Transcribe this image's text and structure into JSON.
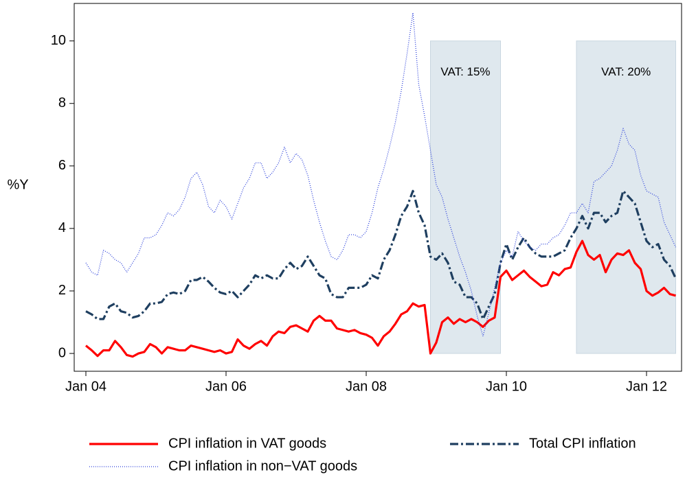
{
  "chart_data": {
    "type": "line",
    "y_label": "%Y",
    "x": [
      "2004-01",
      "2004-02",
      "2004-03",
      "2004-04",
      "2004-05",
      "2004-06",
      "2004-07",
      "2004-08",
      "2004-09",
      "2004-10",
      "2004-11",
      "2004-12",
      "2005-01",
      "2005-02",
      "2005-03",
      "2005-04",
      "2005-05",
      "2005-06",
      "2005-07",
      "2005-08",
      "2005-09",
      "2005-10",
      "2005-11",
      "2005-12",
      "2006-01",
      "2006-02",
      "2006-03",
      "2006-04",
      "2006-05",
      "2006-06",
      "2006-07",
      "2006-08",
      "2006-09",
      "2006-10",
      "2006-11",
      "2006-12",
      "2007-01",
      "2007-02",
      "2007-03",
      "2007-04",
      "2007-05",
      "2007-06",
      "2007-07",
      "2007-08",
      "2007-09",
      "2007-10",
      "2007-11",
      "2007-12",
      "2008-01",
      "2008-02",
      "2008-03",
      "2008-04",
      "2008-05",
      "2008-06",
      "2008-07",
      "2008-08",
      "2008-09",
      "2008-10",
      "2008-11",
      "2008-12",
      "2009-01",
      "2009-02",
      "2009-03",
      "2009-04",
      "2009-05",
      "2009-06",
      "2009-07",
      "2009-08",
      "2009-09",
      "2009-10",
      "2009-11",
      "2009-12",
      "2010-01",
      "2010-02",
      "2010-03",
      "2010-04",
      "2010-05",
      "2010-06",
      "2010-07",
      "2010-08",
      "2010-09",
      "2010-10",
      "2010-11",
      "2010-12",
      "2011-01",
      "2011-02",
      "2011-03",
      "2011-04",
      "2011-05",
      "2011-06",
      "2011-07",
      "2011-08",
      "2011-09",
      "2011-10",
      "2011-11",
      "2011-12",
      "2012-01",
      "2012-02",
      "2012-03",
      "2012-04",
      "2012-05",
      "2012-06"
    ],
    "series": [
      {
        "name": "CPI inflation in VAT goods",
        "color": "#ff0000",
        "style": "solid",
        "values": [
          0.25,
          0.1,
          -0.08,
          0.1,
          0.1,
          0.4,
          0.2,
          -0.05,
          -0.1,
          0.0,
          0.05,
          0.3,
          0.2,
          0.0,
          0.2,
          0.15,
          0.1,
          0.1,
          0.25,
          0.2,
          0.15,
          0.1,
          0.05,
          0.1,
          0.0,
          0.05,
          0.45,
          0.25,
          0.15,
          0.3,
          0.4,
          0.25,
          0.55,
          0.7,
          0.65,
          0.85,
          0.9,
          0.8,
          0.7,
          1.05,
          1.2,
          1.05,
          1.05,
          0.8,
          0.75,
          0.7,
          0.75,
          0.65,
          0.6,
          0.5,
          0.25,
          0.55,
          0.7,
          0.95,
          1.25,
          1.35,
          1.6,
          1.5,
          1.55,
          0.0,
          0.35,
          1.0,
          1.15,
          0.95,
          1.1,
          1.0,
          1.1,
          1.0,
          0.85,
          1.05,
          1.15,
          2.45,
          2.65,
          2.35,
          2.5,
          2.65,
          2.45,
          2.3,
          2.15,
          2.2,
          2.6,
          2.5,
          2.7,
          2.75,
          3.25,
          3.6,
          3.15,
          3.0,
          3.15,
          2.6,
          3.0,
          3.2,
          3.15,
          3.3,
          2.9,
          2.7,
          2.0,
          1.85,
          1.95,
          2.1,
          1.9,
          1.85
        ]
      },
      {
        "name": "Total CPI inflation",
        "color": "#1f3f60",
        "style": "dashdot",
        "values": [
          1.35,
          1.25,
          1.1,
          1.1,
          1.5,
          1.6,
          1.35,
          1.3,
          1.15,
          1.2,
          1.35,
          1.6,
          1.6,
          1.65,
          1.9,
          1.95,
          1.9,
          2.0,
          2.35,
          2.35,
          2.45,
          2.3,
          2.1,
          1.95,
          1.9,
          2.0,
          1.8,
          2.0,
          2.2,
          2.5,
          2.4,
          2.5,
          2.4,
          2.4,
          2.7,
          2.9,
          2.7,
          2.8,
          3.1,
          2.8,
          2.5,
          2.4,
          1.9,
          1.8,
          1.8,
          2.1,
          2.1,
          2.1,
          2.2,
          2.5,
          2.4,
          3.0,
          3.3,
          3.8,
          4.4,
          4.7,
          5.2,
          4.5,
          4.1,
          3.1,
          3.0,
          3.2,
          2.9,
          2.3,
          2.2,
          1.8,
          1.8,
          1.6,
          1.1,
          1.5,
          1.9,
          2.9,
          3.5,
          3.0,
          3.4,
          3.7,
          3.4,
          3.2,
          3.1,
          3.1,
          3.1,
          3.2,
          3.3,
          3.7,
          4.0,
          4.4,
          4.0,
          4.5,
          4.5,
          4.2,
          4.4,
          4.5,
          5.2,
          5.0,
          4.8,
          4.2,
          3.6,
          3.4,
          3.5,
          3.0,
          2.8,
          2.4
        ]
      },
      {
        "name": "CPI inflation in non−VAT goods",
        "color": "#2a3fdb",
        "style": "dotted",
        "values": [
          2.9,
          2.6,
          2.5,
          3.3,
          3.2,
          3.0,
          2.9,
          2.6,
          2.9,
          3.2,
          3.7,
          3.7,
          3.8,
          4.1,
          4.5,
          4.4,
          4.6,
          5.0,
          5.6,
          5.8,
          5.4,
          4.7,
          4.5,
          4.9,
          4.7,
          4.3,
          4.8,
          5.3,
          5.6,
          6.1,
          6.1,
          5.6,
          5.8,
          6.1,
          6.6,
          6.1,
          6.4,
          6.2,
          5.7,
          4.9,
          4.2,
          3.6,
          3.1,
          3.0,
          3.3,
          3.8,
          3.8,
          3.7,
          3.9,
          4.5,
          5.3,
          5.9,
          6.6,
          7.4,
          8.4,
          9.6,
          10.9,
          8.6,
          7.6,
          6.5,
          5.4,
          5.0,
          4.3,
          3.7,
          3.1,
          2.6,
          2.0,
          1.2,
          0.55,
          1.3,
          2.1,
          2.9,
          3.3,
          3.1,
          3.9,
          3.6,
          3.4,
          3.3,
          3.5,
          3.5,
          3.7,
          3.8,
          4.1,
          4.5,
          4.5,
          4.8,
          4.5,
          5.5,
          5.6,
          5.8,
          6.0,
          6.5,
          7.2,
          6.7,
          6.5,
          5.7,
          5.2,
          5.1,
          5.0,
          4.2,
          3.8,
          3.4
        ]
      }
    ],
    "annotations": [
      {
        "label": "VAT: 15%",
        "x": [
          "2008-12",
          "2009-12"
        ],
        "y": [
          0,
          10
        ],
        "color": "#dbe5ec"
      },
      {
        "label": "VAT: 20%",
        "x": [
          "2011-01",
          "2012-06"
        ],
        "y": [
          0,
          10
        ],
        "color": "#dbe5ec"
      }
    ],
    "xlim": [
      "2003-11",
      "2012-07"
    ],
    "xticks": [
      {
        "value": "2004-01",
        "label": "Jan 04"
      },
      {
        "value": "2006-01",
        "label": "Jan 06"
      },
      {
        "value": "2008-01",
        "label": "Jan 08"
      },
      {
        "value": "2010-01",
        "label": "Jan 10"
      },
      {
        "value": "2012-01",
        "label": "Jan 12"
      }
    ],
    "ylim": [
      -0.57,
      11.2
    ],
    "yticks": [
      0,
      2,
      4,
      6,
      8,
      10
    ],
    "legend": "bottom"
  }
}
